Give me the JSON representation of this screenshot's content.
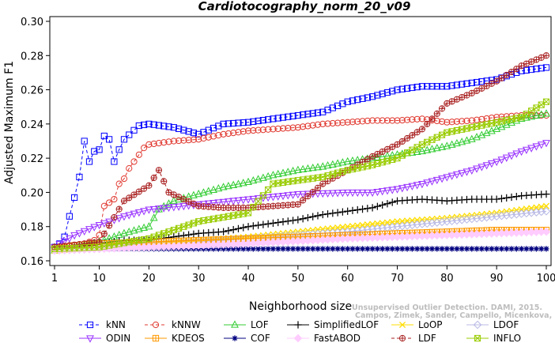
{
  "chart_data": {
    "type": "line",
    "title": "Cardiotocography_norm_20_v09",
    "xlabel": "Neighborhood size",
    "ylabel": "Adjusted Maximum F1",
    "xlim": [
      1,
      100
    ],
    "ylim": [
      0.16,
      0.3
    ],
    "xticks": [
      1,
      10,
      20,
      30,
      40,
      50,
      60,
      70,
      80,
      90,
      100
    ],
    "yticks": [
      0.16,
      0.18,
      0.2,
      0.22,
      0.24,
      0.26,
      0.28,
      0.3
    ],
    "ytick_labels": [
      "0.16",
      "0.18",
      "0.20",
      "0.22",
      "0.24",
      "0.26",
      "0.28",
      "0.30"
    ],
    "grid": false,
    "legend_position": "bottom",
    "credit_lines": [
      "Unsupervised Outlier Detection. DAMI, 2015.",
      "Campos, Zimek, Sander, Campello, Micenkova, Schubert, Assent, Houle"
    ],
    "series": [
      {
        "name": "kNN",
        "color": "#0000ff",
        "marker": "square",
        "dash": true,
        "points": [
          [
            1,
            0.168
          ],
          [
            2,
            0.17
          ],
          [
            3,
            0.174
          ],
          [
            4,
            0.186
          ],
          [
            5,
            0.197
          ],
          [
            6,
            0.209
          ],
          [
            7,
            0.23
          ],
          [
            8,
            0.218
          ],
          [
            9,
            0.224
          ],
          [
            10,
            0.225
          ],
          [
            11,
            0.233
          ],
          [
            12,
            0.231
          ],
          [
            13,
            0.218
          ],
          [
            14,
            0.225
          ],
          [
            15,
            0.231
          ],
          [
            18,
            0.239
          ],
          [
            20,
            0.24
          ],
          [
            25,
            0.238
          ],
          [
            30,
            0.234
          ],
          [
            35,
            0.24
          ],
          [
            40,
            0.241
          ],
          [
            45,
            0.243
          ],
          [
            50,
            0.245
          ],
          [
            55,
            0.247
          ],
          [
            60,
            0.253
          ],
          [
            65,
            0.256
          ],
          [
            70,
            0.26
          ],
          [
            75,
            0.262
          ],
          [
            80,
            0.262
          ],
          [
            85,
            0.264
          ],
          [
            90,
            0.266
          ],
          [
            95,
            0.271
          ],
          [
            100,
            0.273
          ]
        ]
      },
      {
        "name": "kNNW",
        "color": "#e0382f",
        "marker": "circle",
        "dash": true,
        "points": [
          [
            1,
            0.167
          ],
          [
            3,
            0.168
          ],
          [
            5,
            0.169
          ],
          [
            7,
            0.17
          ],
          [
            9,
            0.172
          ],
          [
            10,
            0.175
          ],
          [
            11,
            0.192
          ],
          [
            12,
            0.194
          ],
          [
            13,
            0.196
          ],
          [
            14,
            0.205
          ],
          [
            15,
            0.208
          ],
          [
            16,
            0.214
          ],
          [
            17,
            0.218
          ],
          [
            18,
            0.222
          ],
          [
            19,
            0.226
          ],
          [
            20,
            0.228
          ],
          [
            25,
            0.23
          ],
          [
            30,
            0.231
          ],
          [
            35,
            0.234
          ],
          [
            40,
            0.236
          ],
          [
            45,
            0.237
          ],
          [
            50,
            0.238
          ],
          [
            55,
            0.24
          ],
          [
            60,
            0.241
          ],
          [
            65,
            0.242
          ],
          [
            70,
            0.242
          ],
          [
            75,
            0.243
          ],
          [
            80,
            0.241
          ],
          [
            85,
            0.242
          ],
          [
            90,
            0.244
          ],
          [
            95,
            0.245
          ],
          [
            100,
            0.245
          ]
        ]
      },
      {
        "name": "LOF",
        "color": "#33cc33",
        "marker": "triangle",
        "dash": false,
        "points": [
          [
            1,
            0.166
          ],
          [
            5,
            0.168
          ],
          [
            10,
            0.171
          ],
          [
            15,
            0.176
          ],
          [
            20,
            0.18
          ],
          [
            22,
            0.19
          ],
          [
            25,
            0.195
          ],
          [
            30,
            0.199
          ],
          [
            35,
            0.203
          ],
          [
            40,
            0.206
          ],
          [
            45,
            0.21
          ],
          [
            50,
            0.213
          ],
          [
            55,
            0.215
          ],
          [
            60,
            0.218
          ],
          [
            65,
            0.22
          ],
          [
            70,
            0.222
          ],
          [
            75,
            0.224
          ],
          [
            80,
            0.227
          ],
          [
            85,
            0.231
          ],
          [
            90,
            0.237
          ],
          [
            95,
            0.243
          ],
          [
            100,
            0.246
          ]
        ]
      },
      {
        "name": "SimplifiedLOF",
        "color": "#000000",
        "marker": "plus",
        "dash": false,
        "points": [
          [
            1,
            0.168
          ],
          [
            5,
            0.168
          ],
          [
            10,
            0.17
          ],
          [
            15,
            0.172
          ],
          [
            20,
            0.172
          ],
          [
            25,
            0.174
          ],
          [
            30,
            0.176
          ],
          [
            35,
            0.177
          ],
          [
            40,
            0.18
          ],
          [
            45,
            0.182
          ],
          [
            50,
            0.184
          ],
          [
            55,
            0.187
          ],
          [
            60,
            0.189
          ],
          [
            65,
            0.191
          ],
          [
            70,
            0.195
          ],
          [
            75,
            0.196
          ],
          [
            80,
            0.195
          ],
          [
            85,
            0.196
          ],
          [
            90,
            0.196
          ],
          [
            95,
            0.198
          ],
          [
            100,
            0.199
          ]
        ]
      },
      {
        "name": "LoOP",
        "color": "#ffdd00",
        "marker": "x",
        "dash": false,
        "points": [
          [
            1,
            0.166
          ],
          [
            10,
            0.168
          ],
          [
            20,
            0.17
          ],
          [
            30,
            0.172
          ],
          [
            40,
            0.174
          ],
          [
            50,
            0.177
          ],
          [
            60,
            0.18
          ],
          [
            70,
            0.183
          ],
          [
            80,
            0.185
          ],
          [
            90,
            0.188
          ],
          [
            100,
            0.192
          ]
        ]
      },
      {
        "name": "LDOF",
        "color": "#b8b8e6",
        "marker": "diamond",
        "dash": false,
        "points": [
          [
            1,
            0.166
          ],
          [
            10,
            0.167
          ],
          [
            20,
            0.169
          ],
          [
            30,
            0.171
          ],
          [
            40,
            0.173
          ],
          [
            50,
            0.175
          ],
          [
            60,
            0.177
          ],
          [
            70,
            0.18
          ],
          [
            80,
            0.183
          ],
          [
            90,
            0.186
          ],
          [
            100,
            0.189
          ]
        ]
      },
      {
        "name": "ODIN",
        "color": "#9933ff",
        "marker": "triangle-down",
        "dash": false,
        "points": [
          [
            1,
            0.168
          ],
          [
            5,
            0.175
          ],
          [
            10,
            0.181
          ],
          [
            15,
            0.186
          ],
          [
            20,
            0.19
          ],
          [
            30,
            0.193
          ],
          [
            40,
            0.196
          ],
          [
            50,
            0.199
          ],
          [
            60,
            0.2
          ],
          [
            65,
            0.2
          ],
          [
            70,
            0.202
          ],
          [
            75,
            0.205
          ],
          [
            80,
            0.209
          ],
          [
            85,
            0.213
          ],
          [
            90,
            0.218
          ],
          [
            95,
            0.224
          ],
          [
            100,
            0.229
          ]
        ]
      },
      {
        "name": "KDEOS",
        "color": "#ff9900",
        "marker": "boxplus",
        "dash": false,
        "points": [
          [
            1,
            0.167
          ],
          [
            5,
            0.169
          ],
          [
            10,
            0.17
          ],
          [
            20,
            0.171
          ],
          [
            30,
            0.172
          ],
          [
            40,
            0.173
          ],
          [
            50,
            0.174
          ],
          [
            60,
            0.175
          ],
          [
            70,
            0.176
          ],
          [
            80,
            0.177
          ],
          [
            90,
            0.178
          ],
          [
            100,
            0.178
          ]
        ]
      },
      {
        "name": "COF",
        "color": "#000080",
        "marker": "star",
        "dash": false,
        "points": [
          [
            1,
            0.167
          ],
          [
            20,
            0.167
          ],
          [
            40,
            0.167
          ],
          [
            60,
            0.167
          ],
          [
            80,
            0.167
          ],
          [
            100,
            0.167
          ]
        ]
      },
      {
        "name": "FastABOD",
        "color": "#ffccff",
        "marker": "diamond-filled",
        "dash": false,
        "points": [
          [
            1,
            0.166
          ],
          [
            20,
            0.168
          ],
          [
            40,
            0.17
          ],
          [
            60,
            0.173
          ],
          [
            80,
            0.175
          ],
          [
            100,
            0.177
          ]
        ]
      },
      {
        "name": "LDF",
        "color": "#aa2222",
        "marker": "circle-plus",
        "dash": true,
        "points": [
          [
            1,
            0.168
          ],
          [
            10,
            0.171
          ],
          [
            15,
            0.195
          ],
          [
            20,
            0.204
          ],
          [
            22,
            0.213
          ],
          [
            24,
            0.2
          ],
          [
            30,
            0.192
          ],
          [
            35,
            0.191
          ],
          [
            40,
            0.191
          ],
          [
            45,
            0.192
          ],
          [
            50,
            0.193
          ],
          [
            55,
            0.205
          ],
          [
            60,
            0.213
          ],
          [
            65,
            0.221
          ],
          [
            70,
            0.228
          ],
          [
            75,
            0.237
          ],
          [
            80,
            0.252
          ],
          [
            85,
            0.258
          ],
          [
            90,
            0.265
          ],
          [
            95,
            0.274
          ],
          [
            100,
            0.28
          ]
        ]
      },
      {
        "name": "INFLO",
        "color": "#99cc00",
        "marker": "hourglass",
        "dash": false,
        "points": [
          [
            1,
            0.167
          ],
          [
            10,
            0.168
          ],
          [
            20,
            0.173
          ],
          [
            30,
            0.183
          ],
          [
            40,
            0.188
          ],
          [
            45,
            0.205
          ],
          [
            50,
            0.207
          ],
          [
            55,
            0.209
          ],
          [
            60,
            0.213
          ],
          [
            65,
            0.216
          ],
          [
            70,
            0.22
          ],
          [
            75,
            0.228
          ],
          [
            80,
            0.235
          ],
          [
            85,
            0.238
          ],
          [
            90,
            0.241
          ],
          [
            95,
            0.244
          ],
          [
            100,
            0.253
          ]
        ]
      }
    ]
  }
}
